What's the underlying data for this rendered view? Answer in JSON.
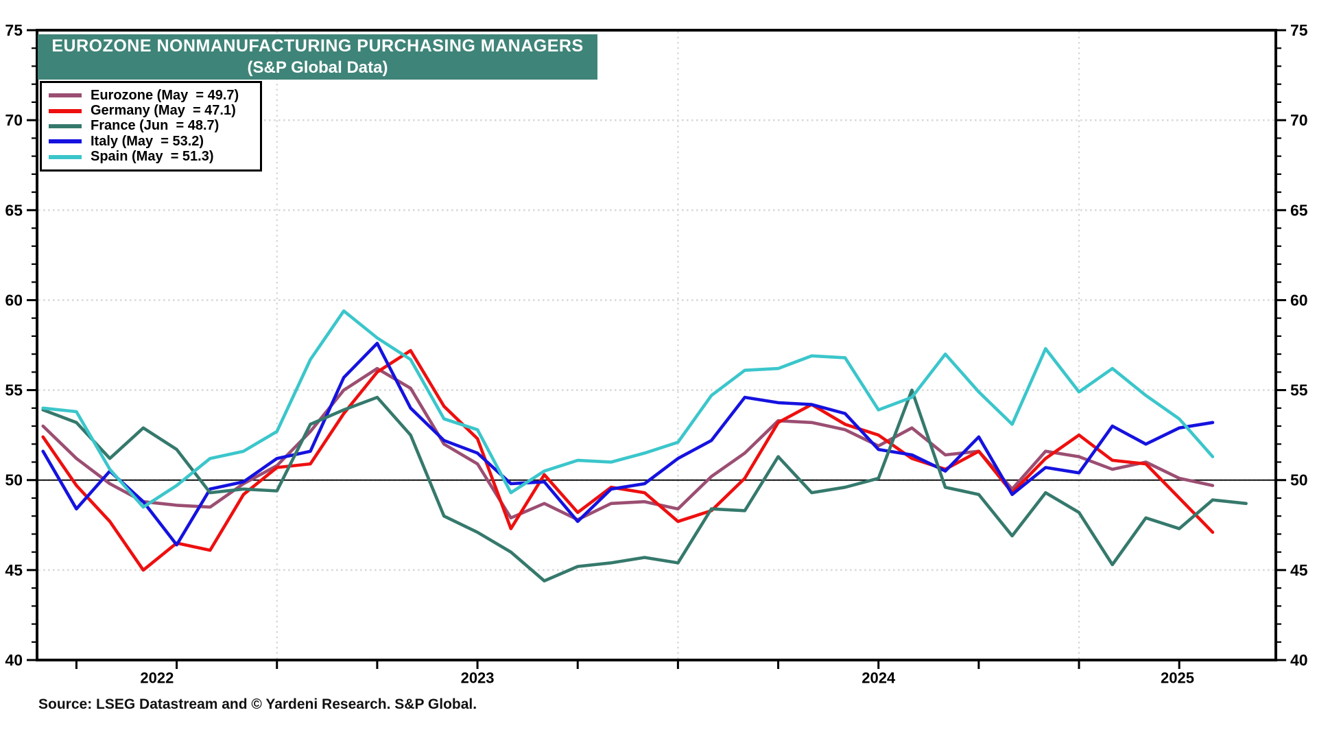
{
  "title": {
    "line1": "EUROZONE NONMANUFACTURING PURCHASING MANAGERS",
    "line2": "(S&P Global Data)",
    "banner_color": "#3F8478",
    "text_color": "#FFFFFF"
  },
  "legend": {
    "position": "top-left",
    "items": [
      {
        "label": "Eurozone (May  = 49.7)",
        "color": "#9B4E72"
      },
      {
        "label": "Germany (May  = 47.1)",
        "color": "#EE0F0F"
      },
      {
        "label": "France (Jun  = 48.7)",
        "color": "#35796C"
      },
      {
        "label": "Italy (May  = 53.2)",
        "color": "#1512DF"
      },
      {
        "label": "Spain (May  = 51.3)",
        "color": "#3BC6CB"
      }
    ]
  },
  "source_note": "Source: LSEG Datastream and © Yardeni Research. S&P Global.",
  "chart_data": {
    "type": "line",
    "title": "EUROZONE NONMANUFACTURING PURCHASING MANAGERS (S&P Global Data)",
    "ylim": [
      40,
      75
    ],
    "ytick_step": 5,
    "yminor_step": 1,
    "reference_line": 50,
    "grid": "dotted horizontal at 5-pt steps, dashed vertical at each January",
    "x_start_month": "2022-06",
    "months": [
      "2022-06",
      "2022-07",
      "2022-08",
      "2022-09",
      "2022-10",
      "2022-11",
      "2022-12",
      "2023-01",
      "2023-02",
      "2023-03",
      "2023-04",
      "2023-05",
      "2023-06",
      "2023-07",
      "2023-08",
      "2023-09",
      "2023-10",
      "2023-11",
      "2023-12",
      "2024-01",
      "2024-02",
      "2024-03",
      "2024-04",
      "2024-05",
      "2024-06",
      "2024-07",
      "2024-08",
      "2024-09",
      "2024-10",
      "2024-11",
      "2024-12",
      "2025-01",
      "2025-02",
      "2025-03",
      "2025-04",
      "2025-05",
      "2025-06"
    ],
    "year_labels": [
      "2022",
      "2023",
      "2024",
      "2025"
    ],
    "january_gridline_month_indices": [
      7,
      19,
      31
    ],
    "series": [
      {
        "name": "Eurozone",
        "color": "#9B4E72",
        "values": [
          53.0,
          51.2,
          49.8,
          48.8,
          48.6,
          48.5,
          49.8,
          50.8,
          52.7,
          55.0,
          56.2,
          55.1,
          52.0,
          50.9,
          47.9,
          48.7,
          47.8,
          48.7,
          48.8,
          48.4,
          50.2,
          51.5,
          53.3,
          53.2,
          52.8,
          51.9,
          52.9,
          51.4,
          51.6,
          49.5,
          51.6,
          51.3,
          50.6,
          51.0,
          50.1,
          49.7,
          null
        ]
      },
      {
        "name": "Germany",
        "color": "#EE0F0F",
        "values": [
          52.4,
          49.7,
          47.7,
          45.0,
          46.5,
          46.1,
          49.2,
          50.7,
          50.9,
          53.7,
          56.0,
          57.2,
          54.1,
          52.3,
          47.3,
          50.3,
          48.2,
          49.6,
          49.3,
          47.7,
          48.3,
          50.1,
          53.2,
          54.2,
          53.1,
          52.5,
          51.2,
          50.6,
          51.6,
          49.3,
          51.2,
          52.5,
          51.1,
          50.9,
          49.0,
          47.1,
          null
        ]
      },
      {
        "name": "Italy",
        "color": "#1512DF",
        "values": [
          51.6,
          48.4,
          50.5,
          48.8,
          46.4,
          49.5,
          49.9,
          51.2,
          51.6,
          55.7,
          57.6,
          54.0,
          52.2,
          51.5,
          49.8,
          49.9,
          47.7,
          49.5,
          49.8,
          51.2,
          52.2,
          54.6,
          54.3,
          54.2,
          53.7,
          51.7,
          51.4,
          50.5,
          52.4,
          49.2,
          50.7,
          50.4,
          53.0,
          52.0,
          52.9,
          53.2,
          null
        ]
      },
      {
        "name": "France",
        "color": "#35796C",
        "values": [
          53.9,
          53.2,
          51.2,
          52.9,
          51.7,
          49.3,
          49.5,
          49.4,
          53.1,
          53.9,
          54.6,
          52.5,
          48.0,
          47.1,
          46.0,
          44.4,
          45.2,
          45.4,
          45.7,
          45.4,
          48.4,
          48.3,
          51.3,
          49.3,
          49.6,
          50.1,
          55.0,
          49.6,
          49.2,
          46.9,
          49.3,
          48.2,
          45.3,
          47.9,
          47.3,
          48.9,
          48.7
        ]
      },
      {
        "name": "Spain",
        "color": "#3BC6CB",
        "values": [
          54.0,
          53.8,
          50.6,
          48.5,
          49.7,
          51.2,
          51.6,
          52.7,
          56.7,
          59.4,
          57.9,
          56.7,
          53.4,
          52.8,
          49.3,
          50.5,
          51.1,
          51.0,
          51.5,
          52.1,
          54.7,
          56.1,
          56.2,
          56.9,
          56.8,
          53.9,
          54.6,
          57.0,
          54.9,
          53.1,
          57.3,
          54.9,
          56.2,
          54.7,
          53.4,
          51.3,
          null
        ]
      }
    ]
  },
  "colors": {
    "frame": "#000000",
    "grid_dotted": "#D9D9D9",
    "grid_dashed": "#D4D4D4",
    "fifty_line": "#111111",
    "tick_label": "#000000"
  }
}
